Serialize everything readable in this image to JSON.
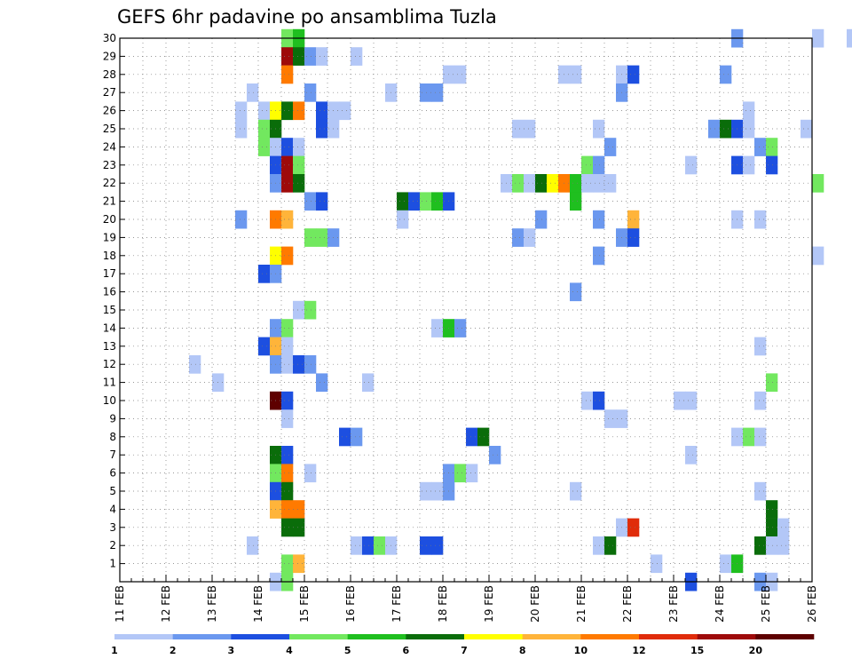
{
  "chart_data": {
    "type": "heatmap",
    "title": "GEFS 6hr padavine po ansamblima Tuzla",
    "x_tick_labels": [
      "11 FEB",
      "12 FEB",
      "13 FEB",
      "14 FEB",
      "15 FEB",
      "16 FEB",
      "17 FEB",
      "18 FEB",
      "19 FEB",
      "20 FEB",
      "21 FEB",
      "22 FEB",
      "23 FEB",
      "24 FEB",
      "25 FEB",
      "26 FEB"
    ],
    "y_tick_labels": [
      "1",
      "2",
      "3",
      "4",
      "5",
      "6",
      "7",
      "8",
      "9",
      "10",
      "11",
      "12",
      "13",
      "14",
      "15",
      "16",
      "17",
      "18",
      "19",
      "20",
      "21",
      "22",
      "23",
      "24",
      "25",
      "26",
      "27",
      "28",
      "29",
      "30"
    ],
    "x_axis": {
      "start_day": 11,
      "end_day": 26,
      "steps_per_day": 4,
      "step_hours": 6
    },
    "y_range": [
      0,
      30
    ],
    "grid": true,
    "colorbar": {
      "levels": [
        "1",
        "2",
        "3",
        "4",
        "5",
        "6",
        "7",
        "8",
        "10",
        "12",
        "15",
        "20"
      ],
      "colors": [
        "#b3c7f7",
        "#6b98ef",
        "#1d4fe0",
        "#72e85f",
        "#1fbf1f",
        "#0a6d0a",
        "#ffff00",
        "#ffb43a",
        "#ff7a00",
        "#e02c0a",
        "#9e0a0a",
        "#5e0000"
      ]
    },
    "cells": [
      {
        "m": 30,
        "s": [
          [
            14,
            4
          ],
          [
            15,
            5
          ],
          [
            53,
            2
          ],
          [
            60,
            1
          ],
          [
            63,
            1
          ],
          [
            64,
            9
          ],
          [
            65,
            2
          ]
        ]
      },
      {
        "m": 29,
        "s": [
          [
            14,
            11
          ],
          [
            15,
            6
          ],
          [
            16,
            2
          ],
          [
            17,
            1
          ],
          [
            20,
            1
          ]
        ]
      },
      {
        "m": 28,
        "s": [
          [
            14,
            9
          ],
          [
            28,
            1
          ],
          [
            29,
            1
          ],
          [
            38,
            1
          ],
          [
            39,
            1
          ],
          [
            43,
            1
          ],
          [
            44,
            3
          ],
          [
            52,
            2
          ]
        ]
      },
      {
        "m": 27,
        "s": [
          [
            11,
            1
          ],
          [
            16,
            2
          ],
          [
            23,
            1
          ],
          [
            26,
            2
          ],
          [
            27,
            2
          ],
          [
            43,
            2
          ]
        ]
      },
      {
        "m": 26,
        "s": [
          [
            10,
            1
          ],
          [
            12,
            1
          ],
          [
            13,
            7
          ],
          [
            14,
            6
          ],
          [
            15,
            9
          ],
          [
            17,
            3
          ],
          [
            18,
            1
          ],
          [
            19,
            1
          ],
          [
            54,
            1
          ]
        ]
      },
      {
        "m": 25,
        "s": [
          [
            10,
            1
          ],
          [
            12,
            4
          ],
          [
            13,
            6
          ],
          [
            17,
            3
          ],
          [
            18,
            1
          ],
          [
            34,
            1
          ],
          [
            35,
            1
          ],
          [
            41,
            1
          ],
          [
            51,
            2
          ],
          [
            52,
            6
          ],
          [
            53,
            3
          ],
          [
            54,
            1
          ],
          [
            59,
            1
          ]
        ]
      },
      {
        "m": 24,
        "s": [
          [
            12,
            4
          ],
          [
            13,
            1
          ],
          [
            14,
            3
          ],
          [
            15,
            1
          ],
          [
            42,
            2
          ],
          [
            55,
            2
          ],
          [
            56,
            4
          ]
        ]
      },
      {
        "m": 23,
        "s": [
          [
            13,
            3
          ],
          [
            14,
            11
          ],
          [
            15,
            4
          ],
          [
            40,
            4
          ],
          [
            41,
            2
          ],
          [
            49,
            1
          ],
          [
            53,
            3
          ],
          [
            54,
            1
          ],
          [
            56,
            3
          ]
        ]
      },
      {
        "m": 22,
        "s": [
          [
            13,
            2
          ],
          [
            14,
            11
          ],
          [
            15,
            6
          ],
          [
            33,
            1
          ],
          [
            34,
            4
          ],
          [
            35,
            1
          ],
          [
            36,
            6
          ],
          [
            37,
            7
          ],
          [
            38,
            9
          ],
          [
            39,
            5
          ],
          [
            40,
            1
          ],
          [
            41,
            1
          ],
          [
            42,
            1
          ],
          [
            60,
            4
          ]
        ]
      },
      {
        "m": 21,
        "s": [
          [
            16,
            2
          ],
          [
            17,
            3
          ],
          [
            24,
            6
          ],
          [
            25,
            3
          ],
          [
            26,
            4
          ],
          [
            27,
            5
          ],
          [
            28,
            3
          ],
          [
            39,
            5
          ]
        ]
      },
      {
        "m": 20,
        "s": [
          [
            10,
            2
          ],
          [
            13,
            9
          ],
          [
            14,
            8
          ],
          [
            24,
            1
          ],
          [
            36,
            2
          ],
          [
            41,
            2
          ],
          [
            44,
            8
          ],
          [
            53,
            1
          ],
          [
            55,
            1
          ]
        ]
      },
      {
        "m": 19,
        "s": [
          [
            16,
            4
          ],
          [
            17,
            4
          ],
          [
            18,
            2
          ],
          [
            34,
            2
          ],
          [
            35,
            1
          ],
          [
            43,
            2
          ],
          [
            44,
            3
          ]
        ]
      },
      {
        "m": 18,
        "s": [
          [
            13,
            7
          ],
          [
            14,
            9
          ],
          [
            41,
            2
          ],
          [
            60,
            1
          ]
        ]
      },
      {
        "m": 17,
        "s": [
          [
            12,
            3
          ],
          [
            13,
            2
          ]
        ]
      },
      {
        "m": 16,
        "s": [
          [
            39,
            2
          ]
        ]
      },
      {
        "m": 15,
        "s": [
          [
            15,
            1
          ],
          [
            16,
            4
          ]
        ]
      },
      {
        "m": 14,
        "s": [
          [
            13,
            2
          ],
          [
            14,
            4
          ],
          [
            27,
            1
          ],
          [
            28,
            5
          ],
          [
            29,
            2
          ]
        ]
      },
      {
        "m": 13,
        "s": [
          [
            12,
            3
          ],
          [
            13,
            8
          ],
          [
            14,
            1
          ],
          [
            55,
            1
          ]
        ]
      },
      {
        "m": 12,
        "s": [
          [
            6,
            1
          ],
          [
            13,
            2
          ],
          [
            14,
            1
          ],
          [
            15,
            3
          ],
          [
            16,
            2
          ]
        ]
      },
      {
        "m": 11,
        "s": [
          [
            8,
            1
          ],
          [
            17,
            2
          ],
          [
            21,
            1
          ],
          [
            56,
            4
          ]
        ]
      },
      {
        "m": 10,
        "s": [
          [
            13,
            12
          ],
          [
            14,
            3
          ],
          [
            40,
            1
          ],
          [
            41,
            3
          ],
          [
            48,
            1
          ],
          [
            49,
            1
          ],
          [
            55,
            1
          ]
        ]
      },
      {
        "m": 9,
        "s": [
          [
            14,
            1
          ],
          [
            42,
            1
          ],
          [
            43,
            1
          ]
        ]
      },
      {
        "m": 8,
        "s": [
          [
            19,
            3
          ],
          [
            20,
            2
          ],
          [
            30,
            3
          ],
          [
            31,
            6
          ],
          [
            53,
            1
          ],
          [
            54,
            4
          ],
          [
            55,
            1
          ]
        ]
      },
      {
        "m": 7,
        "s": [
          [
            13,
            6
          ],
          [
            14,
            3
          ],
          [
            32,
            2
          ],
          [
            49,
            1
          ]
        ]
      },
      {
        "m": 6,
        "s": [
          [
            13,
            4
          ],
          [
            14,
            9
          ],
          [
            16,
            1
          ],
          [
            28,
            2
          ],
          [
            29,
            4
          ],
          [
            30,
            1
          ]
        ]
      },
      {
        "m": 5,
        "s": [
          [
            13,
            3
          ],
          [
            14,
            6
          ],
          [
            26,
            1
          ],
          [
            27,
            1
          ],
          [
            28,
            2
          ],
          [
            39,
            1
          ],
          [
            55,
            1
          ]
        ]
      },
      {
        "m": 4,
        "s": [
          [
            13,
            8
          ],
          [
            14,
            9
          ],
          [
            15,
            9
          ],
          [
            56,
            6
          ]
        ]
      },
      {
        "m": 3,
        "s": [
          [
            14,
            6
          ],
          [
            15,
            6
          ],
          [
            43,
            1
          ],
          [
            44,
            10
          ],
          [
            56,
            6
          ],
          [
            57,
            1
          ]
        ]
      },
      {
        "m": 2,
        "s": [
          [
            11,
            1
          ],
          [
            20,
            1
          ],
          [
            21,
            3
          ],
          [
            22,
            4
          ],
          [
            23,
            1
          ],
          [
            26,
            3
          ],
          [
            27,
            3
          ],
          [
            41,
            1
          ],
          [
            42,
            6
          ],
          [
            55,
            6
          ],
          [
            56,
            1
          ],
          [
            57,
            1
          ]
        ]
      },
      {
        "m": 1,
        "s": [
          [
            14,
            4
          ],
          [
            15,
            8
          ],
          [
            46,
            1
          ],
          [
            52,
            1
          ],
          [
            53,
            5
          ]
        ]
      },
      {
        "m": 0,
        "s": [
          [
            13,
            1
          ],
          [
            14,
            4
          ],
          [
            49,
            3
          ],
          [
            55,
            2
          ],
          [
            56,
            1
          ]
        ]
      }
    ]
  }
}
